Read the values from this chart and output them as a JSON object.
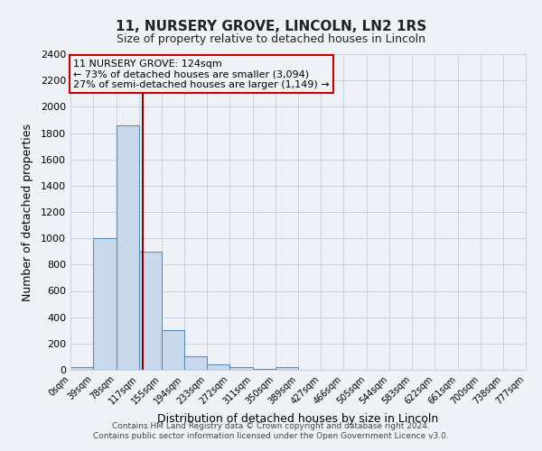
{
  "title": "11, NURSERY GROVE, LINCOLN, LN2 1RS",
  "subtitle": "Size of property relative to detached houses in Lincoln",
  "xlabel": "Distribution of detached houses by size in Lincoln",
  "ylabel": "Number of detached properties",
  "bin_edges": [
    0,
    39,
    78,
    117,
    155,
    194,
    233,
    272,
    311,
    350,
    389,
    427,
    466,
    505,
    544,
    583,
    622,
    661,
    700,
    738,
    777
  ],
  "bin_labels": [
    "0sqm",
    "39sqm",
    "78sqm",
    "117sqm",
    "155sqm",
    "194sqm",
    "233sqm",
    "272sqm",
    "311sqm",
    "350sqm",
    "389sqm",
    "427sqm",
    "466sqm",
    "505sqm",
    "544sqm",
    "583sqm",
    "622sqm",
    "661sqm",
    "700sqm",
    "738sqm",
    "777sqm"
  ],
  "bar_heights": [
    20,
    1000,
    1860,
    900,
    300,
    100,
    40,
    20,
    5,
    20,
    0,
    0,
    0,
    0,
    0,
    0,
    0,
    0,
    0,
    0
  ],
  "bar_color": "#c9d9ec",
  "bar_edge_color": "#5b8db8",
  "property_size": 124,
  "vline_color": "#8b0000",
  "ylim": [
    0,
    2400
  ],
  "yticks": [
    0,
    200,
    400,
    600,
    800,
    1000,
    1200,
    1400,
    1600,
    1800,
    2000,
    2200,
    2400
  ],
  "annotation_line1": "11 NURSERY GROVE: 124sqm",
  "annotation_line2": "← 73% of detached houses are smaller (3,094)",
  "annotation_line3": "27% of semi-detached houses are larger (1,149) →",
  "annotation_box_edge_color": "#cc0000",
  "footer_line1": "Contains HM Land Registry data © Crown copyright and database right 2024.",
  "footer_line2": "Contains public sector information licensed under the Open Government Licence v3.0.",
  "bg_color": "#eef2f7",
  "grid_color": "#c8d4e0"
}
